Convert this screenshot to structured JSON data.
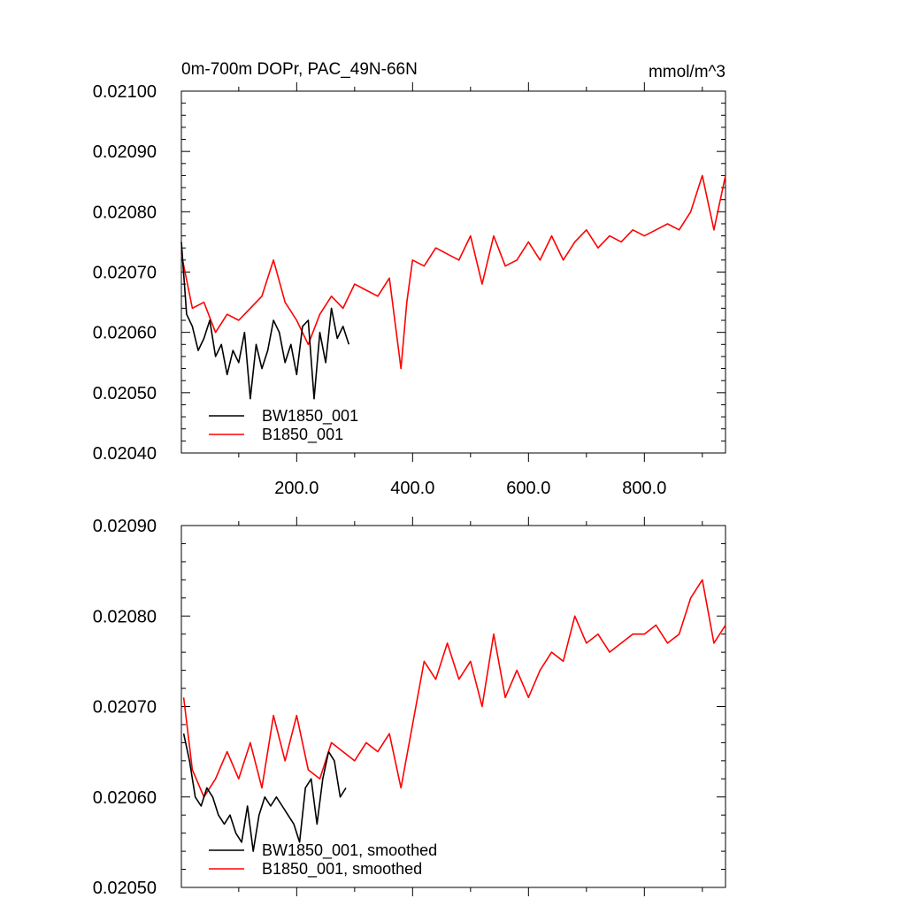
{
  "chart_data": [
    {
      "type": "line",
      "title": "0m-700m DOPr, PAC_49N-66N",
      "units": "mmol/m^3",
      "xlim": [
        1,
        940
      ],
      "ylim": [
        0.0204,
        0.021
      ],
      "x_ticks": [
        200,
        400,
        600,
        800
      ],
      "x_tick_labels": [
        "200.0",
        "400.0",
        "600.0",
        "800.0"
      ],
      "y_ticks": [
        0.0204,
        0.0205,
        0.0206,
        0.0207,
        0.0208,
        0.0209,
        0.021
      ],
      "y_tick_labels": [
        "0.02040",
        "0.02050",
        "0.02060",
        "0.02070",
        "0.02080",
        "0.02090",
        "0.02100"
      ],
      "grid": false,
      "legend_position": "bottom-left",
      "series": [
        {
          "name": "BW1850_001",
          "color": "#000000",
          "x": [
            1,
            10,
            20,
            30,
            40,
            50,
            60,
            70,
            80,
            90,
            100,
            110,
            120,
            130,
            140,
            150,
            160,
            170,
            180,
            190,
            200,
            210,
            220,
            230,
            240,
            250,
            260,
            270,
            280,
            290
          ],
          "values": [
            0.02075,
            0.02063,
            0.02061,
            0.02057,
            0.02059,
            0.02062,
            0.02056,
            0.02058,
            0.02053,
            0.02057,
            0.02055,
            0.0206,
            0.02049,
            0.02058,
            0.02054,
            0.02057,
            0.02062,
            0.0206,
            0.02055,
            0.02058,
            0.02053,
            0.02061,
            0.02062,
            0.02049,
            0.0206,
            0.02055,
            0.02064,
            0.02059,
            0.02061,
            0.02058
          ]
        },
        {
          "name": "B1850_001",
          "color": "#ff0000",
          "x": [
            1,
            20,
            40,
            60,
            80,
            100,
            120,
            140,
            160,
            180,
            200,
            220,
            240,
            260,
            280,
            300,
            320,
            340,
            360,
            380,
            390,
            400,
            420,
            440,
            460,
            480,
            500,
            520,
            540,
            560,
            580,
            600,
            620,
            640,
            660,
            680,
            700,
            720,
            740,
            760,
            780,
            800,
            820,
            840,
            860,
            880,
            900,
            920,
            940
          ],
          "values": [
            0.02073,
            0.02064,
            0.02065,
            0.0206,
            0.02063,
            0.02062,
            0.02064,
            0.02066,
            0.02072,
            0.02065,
            0.02062,
            0.02058,
            0.02063,
            0.02066,
            0.02064,
            0.02068,
            0.02067,
            0.02066,
            0.02069,
            0.02054,
            0.02065,
            0.02072,
            0.02071,
            0.02074,
            0.02073,
            0.02072,
            0.02076,
            0.02068,
            0.02076,
            0.02071,
            0.02072,
            0.02075,
            0.02072,
            0.02076,
            0.02072,
            0.02075,
            0.02077,
            0.02074,
            0.02076,
            0.02075,
            0.02077,
            0.02076,
            0.02077,
            0.02078,
            0.02077,
            0.0208,
            0.02086,
            0.02077,
            0.02086
          ]
        }
      ]
    },
    {
      "type": "line",
      "xlim": [
        1,
        940
      ],
      "ylim": [
        0.0205,
        0.0209
      ],
      "x_ticks": [
        200,
        400,
        600,
        800
      ],
      "y_ticks": [
        0.0205,
        0.0206,
        0.0207,
        0.0208,
        0.0209
      ],
      "y_tick_labels": [
        "0.02050",
        "0.02060",
        "0.02070",
        "0.02080",
        "0.02090"
      ],
      "grid": false,
      "legend_position": "bottom-left",
      "series": [
        {
          "name": "BW1850_001, smoothed",
          "color": "#000000",
          "x": [
            5,
            15,
            25,
            35,
            45,
            55,
            65,
            75,
            85,
            95,
            105,
            115,
            125,
            135,
            145,
            155,
            165,
            175,
            185,
            195,
            205,
            215,
            225,
            235,
            245,
            255,
            265,
            275,
            285
          ],
          "values": [
            0.02067,
            0.02064,
            0.0206,
            0.02059,
            0.02061,
            0.0206,
            0.02058,
            0.02057,
            0.02058,
            0.02056,
            0.02055,
            0.02059,
            0.02054,
            0.02058,
            0.0206,
            0.02059,
            0.0206,
            0.02059,
            0.02058,
            0.02057,
            0.02055,
            0.02061,
            0.02062,
            0.02057,
            0.02062,
            0.02065,
            0.02064,
            0.0206,
            0.02061
          ]
        },
        {
          "name": "B1850_001, smoothed",
          "color": "#ff0000",
          "x": [
            5,
            20,
            40,
            60,
            80,
            100,
            120,
            140,
            160,
            180,
            200,
            220,
            240,
            260,
            280,
            300,
            320,
            340,
            360,
            380,
            400,
            420,
            440,
            460,
            480,
            500,
            520,
            540,
            560,
            580,
            600,
            620,
            640,
            660,
            680,
            700,
            720,
            740,
            760,
            780,
            800,
            820,
            840,
            860,
            880,
            900,
            920,
            940
          ],
          "values": [
            0.02071,
            0.02063,
            0.0206,
            0.02062,
            0.02065,
            0.02062,
            0.02066,
            0.02061,
            0.02069,
            0.02064,
            0.02069,
            0.02063,
            0.02062,
            0.02066,
            0.02065,
            0.02064,
            0.02066,
            0.02065,
            0.02067,
            0.02061,
            0.02068,
            0.02075,
            0.02073,
            0.02077,
            0.02073,
            0.02075,
            0.0207,
            0.02078,
            0.02071,
            0.02074,
            0.02071,
            0.02074,
            0.02076,
            0.02075,
            0.0208,
            0.02077,
            0.02078,
            0.02076,
            0.02077,
            0.02078,
            0.02078,
            0.02079,
            0.02077,
            0.02078,
            0.02082,
            0.02084,
            0.02077,
            0.02079
          ]
        }
      ]
    }
  ]
}
